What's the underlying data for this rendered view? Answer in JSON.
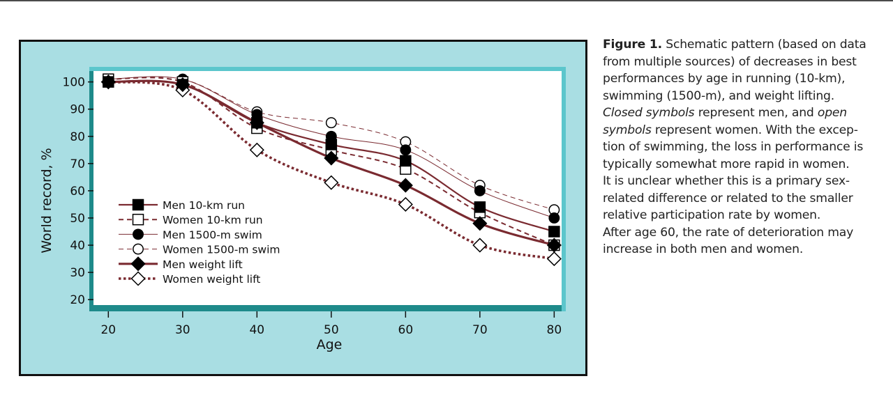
{
  "caption": {
    "label": "Figure 1.",
    "line1_rest": "Schematic pattern (based on data",
    "line2": "from multiple sources) of decreases in best",
    "line3": "performances by age in running (10-km),",
    "line4": "swimming (1500-m), and weight lifting.",
    "line5_em1": "Closed symbols",
    "line5_mid": "represent men, and",
    "line5_em2": "open",
    "line6_em": "symbols",
    "line6_rest": "represent women. With the excep-",
    "line7": "tion of swimming, the loss in performance is",
    "line8": "typically somewhat more rapid in women.",
    "line9": "It is unclear whether this is a primary sex-",
    "line10": "related difference or related to the smaller",
    "line11": "relative participation rate by women.",
    "line12": "After age 60, the rate of deterioration may",
    "line13": "increase in both men and women."
  },
  "chart_data": {
    "type": "line",
    "title": "",
    "xlabel": "Age",
    "ylabel": "World record, %",
    "x": [
      20,
      30,
      40,
      50,
      60,
      70,
      80
    ],
    "xticks": [
      "20",
      "30",
      "40",
      "50",
      "60",
      "70",
      "80"
    ],
    "yticks": [
      "20",
      "30",
      "40",
      "50",
      "60",
      "70",
      "80",
      "90",
      "100"
    ],
    "xlim": [
      18,
      81
    ],
    "ylim": [
      18,
      104
    ],
    "grid": false,
    "legend_position": "lower-left",
    "colors": {
      "series": "#7a2a30",
      "frame_bg": "#a9dee3",
      "plot_bg": "#ffffff",
      "plot_border": "#1e8a8a",
      "plot_border_light": "#5cc6cc"
    },
    "series": [
      {
        "name": "Men 10-km run",
        "values": [
          100,
          99,
          85,
          77,
          71,
          54,
          45
        ],
        "marker": "filled-square",
        "line": "solid",
        "width": 2.2
      },
      {
        "name": "Women 10-km run",
        "values": [
          101,
          100,
          83,
          75,
          68,
          52,
          40
        ],
        "marker": "open-square",
        "line": "dashed",
        "width": 2.0
      },
      {
        "name": "Men 1500-m swim",
        "values": [
          101,
          101,
          88,
          80,
          75,
          60,
          50
        ],
        "marker": "filled-circle",
        "line": "solid",
        "width": 1.0
      },
      {
        "name": "Women 1500-m swim",
        "values": [
          101,
          101,
          89,
          85,
          78,
          62,
          53
        ],
        "marker": "open-circle",
        "line": "dashed",
        "width": 1.0
      },
      {
        "name": "Men weight lift",
        "values": [
          100,
          99,
          85,
          72,
          62,
          48,
          40
        ],
        "marker": "filled-diamond",
        "line": "solid",
        "width": 3.2
      },
      {
        "name": "Women weight lift",
        "values": [
          100,
          97,
          75,
          63,
          55,
          40,
          35
        ],
        "marker": "open-diamond",
        "line": "dotted",
        "width": 3.6
      }
    ]
  }
}
